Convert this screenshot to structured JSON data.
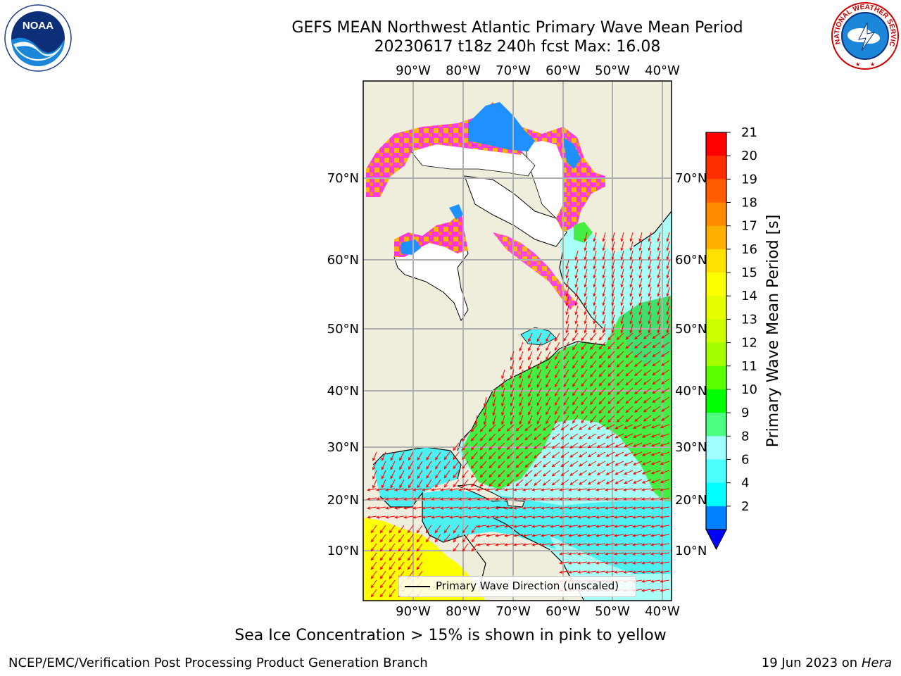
{
  "header": {
    "title_line1": "GEFS MEAN Northwest Atlantic Primary Wave Mean Period",
    "title_line2": "20230617 t18z 240h fcst   Max: 16.08"
  },
  "logos": {
    "left": "NOAA",
    "right": "NATIONAL WEATHER SERVICE"
  },
  "map": {
    "lon_labels": [
      "90°W",
      "80°W",
      "70°W",
      "60°W",
      "50°W",
      "40°W"
    ],
    "lat_labels": [
      "70°N",
      "60°N",
      "50°N",
      "40°N",
      "30°N",
      "20°N",
      "10°N"
    ],
    "legend_label": "Primary Wave Direction (unscaled)",
    "arrow_color": "#ff0000"
  },
  "colorbar": {
    "label": "Primary Wave Mean Period [s]",
    "ticks": [
      "21",
      "20",
      "19",
      "18",
      "17",
      "16",
      "15",
      "14",
      "13",
      "12",
      "11",
      "10",
      "9",
      "8",
      "6",
      "4",
      "2"
    ],
    "colors": [
      "#ff0000",
      "#ff2e00",
      "#ff5c00",
      "#ff8a00",
      "#ffb000",
      "#ffe000",
      "#fcff00",
      "#e6ff00",
      "#ccff00",
      "#a6ff00",
      "#5cff00",
      "#00ff00",
      "#4dff80",
      "#a0ffff",
      "#4dffff",
      "#00ffff",
      "#0080ff"
    ],
    "under_color": "#0000ff"
  },
  "colors": {
    "land": "#efeddc",
    "ocean_swell": "#a7fff5",
    "ocean_warm": "#4df0f0",
    "ocean_green": "#44ee44",
    "sea_ice_pink": "#ff33dd",
    "sea_ice_blue": "#1e90ff",
    "tropical_yellow": "#fcff00",
    "grid": "#b0b0b0"
  },
  "caption": "Sea Ice Concentration > 15% is shown in pink to yellow",
  "footer": {
    "left": "NCEP/EMC/Verification Post Processing Product Generation Branch",
    "date": "19 Jun 2023 on",
    "machine": "Hera"
  }
}
